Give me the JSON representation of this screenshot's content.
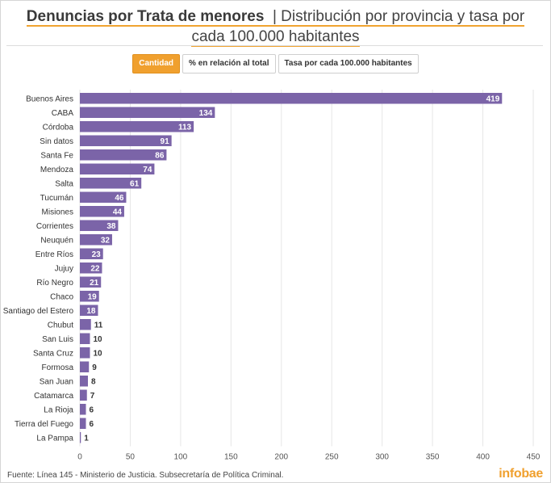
{
  "header": {
    "title_bold": "Denuncias por Trata de menores",
    "title_rest": "| Distribución por provincia y tasa por cada 100.000 habitantes"
  },
  "tabs": [
    {
      "label": "Cantidad",
      "active": true
    },
    {
      "label": "% en relación al total",
      "active": false
    },
    {
      "label": "Tasa por cada 100.000 habitantes",
      "active": false
    }
  ],
  "footer": {
    "source": "Fuente: Línea 145 - Ministerio de Justicia. Subsecretaría de Política Criminal.",
    "brand": "infobae"
  },
  "colors": {
    "bar": "#7b64a8",
    "accent": "#f0a02e"
  },
  "chart_data": {
    "type": "bar",
    "orientation": "horizontal",
    "categories": [
      "Buenos Aires",
      "CABA",
      "Córdoba",
      "Sin datos",
      "Santa Fe",
      "Mendoza",
      "Salta",
      "Tucumán",
      "Misiones",
      "Corrientes",
      "Neuquén",
      "Entre Ríos",
      "Jujuy",
      "Río Negro",
      "Chaco",
      "Santiago del Estero",
      "Chubut",
      "San Luis",
      "Santa Cruz",
      "Formosa",
      "San Juan",
      "Catamarca",
      "La Rioja",
      "Tierra del Fuego",
      "La Pampa"
    ],
    "values": [
      419,
      134,
      113,
      91,
      86,
      74,
      61,
      46,
      44,
      38,
      32,
      23,
      22,
      21,
      19,
      18,
      11,
      10,
      10,
      9,
      8,
      7,
      6,
      6,
      1
    ],
    "xlim": [
      0,
      450
    ],
    "xticks": [
      0,
      50,
      100,
      150,
      200,
      250,
      300,
      350,
      400,
      450
    ],
    "grid": true
  }
}
